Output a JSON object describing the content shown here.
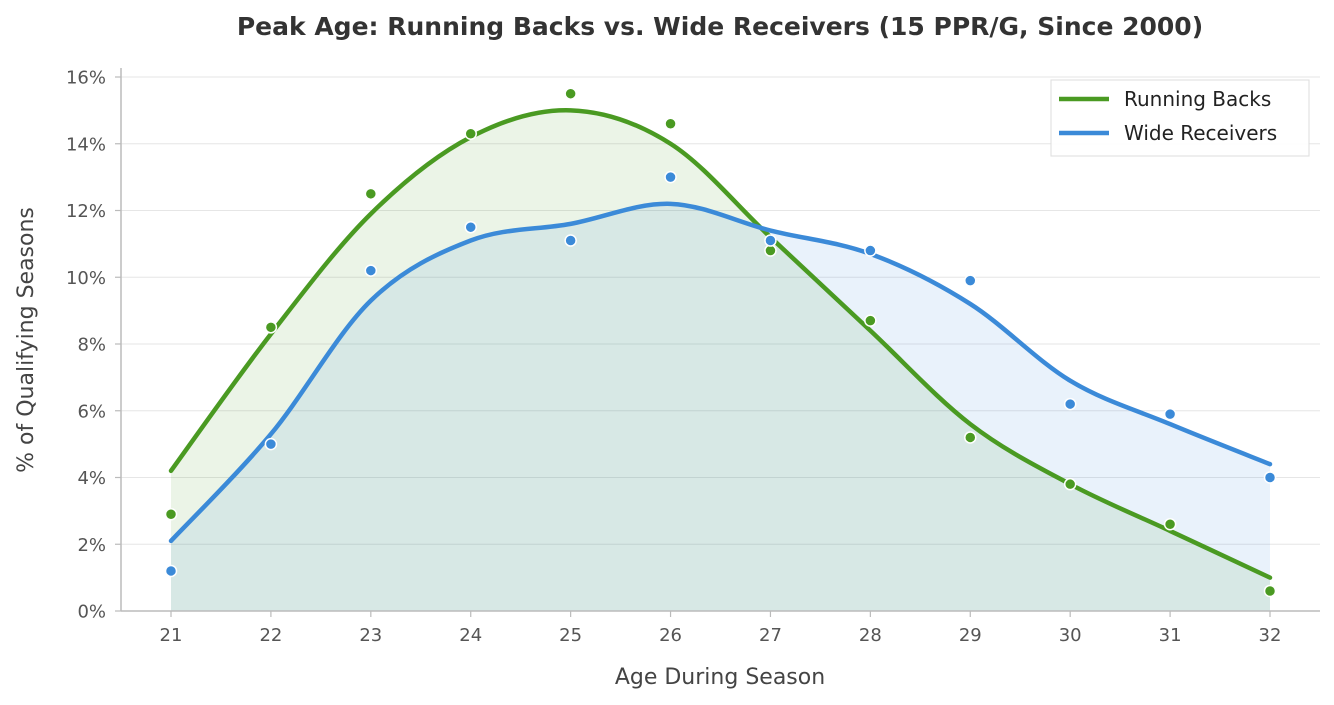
{
  "chart_data": {
    "type": "line",
    "title": "Peak Age: Running Backs vs. Wide Receivers (15 PPR/G, Since 2000)",
    "xlabel": "Age During Season",
    "ylabel": "% of Qualifying Seasons",
    "x": [
      21,
      22,
      23,
      24,
      25,
      26,
      27,
      28,
      29,
      30,
      31,
      32
    ],
    "x_tick_labels": [
      "21",
      "22",
      "23",
      "24",
      "25",
      "26",
      "27",
      "28",
      "29",
      "30",
      "31",
      "32"
    ],
    "ylim": [
      0,
      16
    ],
    "y_ticks": [
      0,
      2,
      4,
      6,
      8,
      10,
      12,
      14,
      16
    ],
    "y_tick_labels": [
      "0%",
      "2%",
      "4%",
      "6%",
      "8%",
      "10%",
      "12%",
      "14%",
      "16%"
    ],
    "grid": "horizontal",
    "legend_position": "top-right",
    "series": [
      {
        "name": "Running Backs",
        "color": "#4a9a22",
        "values": [
          2.9,
          8.5,
          12.5,
          14.3,
          15.5,
          14.6,
          10.8,
          8.7,
          5.2,
          3.8,
          2.6,
          0.6
        ],
        "smoothed": [
          4.2,
          8.3,
          11.9,
          14.2,
          15.0,
          14.0,
          11.2,
          8.4,
          5.6,
          3.8,
          2.4,
          1.0
        ]
      },
      {
        "name": "Wide Receivers",
        "color": "#3b8ad8",
        "values": [
          1.2,
          5.0,
          10.2,
          11.5,
          11.1,
          13.0,
          11.1,
          10.8,
          9.9,
          6.2,
          5.9,
          4.0
        ],
        "smoothed": [
          2.1,
          5.3,
          9.3,
          11.1,
          11.6,
          12.2,
          11.4,
          10.7,
          9.2,
          6.9,
          5.6,
          4.4
        ]
      }
    ]
  }
}
